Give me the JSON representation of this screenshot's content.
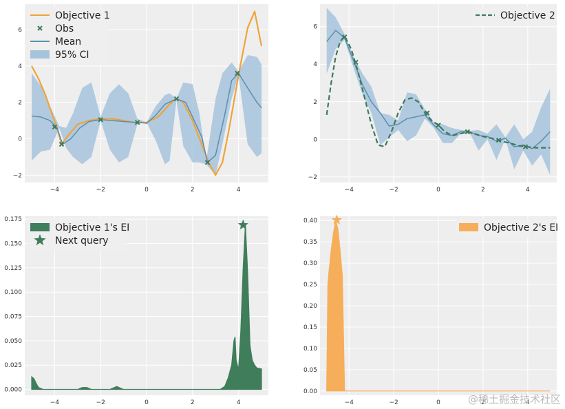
{
  "chart_data": [
    {
      "type": "line",
      "xlim": [
        -5.3,
        5.3
      ],
      "ylim": [
        -2.4,
        7.4
      ],
      "xticks": [
        -4,
        -2,
        0,
        2,
        4
      ],
      "yticks": [
        -2,
        0,
        2,
        4,
        6
      ],
      "grid": true,
      "legend_position": "top-left",
      "series": [
        {
          "name": "95% CI",
          "kind": "band",
          "color": "#a6c3dc",
          "x": [
            -5.0,
            -4.6,
            -4.2,
            -3.8,
            -3.5,
            -3.2,
            -2.8,
            -2.4,
            -2.0,
            -1.6,
            -1.2,
            -0.8,
            -0.4,
            0.0,
            0.4,
            0.8,
            1.0,
            1.3,
            1.6,
            2.0,
            2.3,
            2.6,
            3.0,
            3.3,
            3.7,
            4.0,
            4.4,
            4.8,
            5.0
          ],
          "upper": [
            3.6,
            2.9,
            1.8,
            0.7,
            0.6,
            1.4,
            2.8,
            3.1,
            1.2,
            2.5,
            3.0,
            2.5,
            1.1,
            0.9,
            1.8,
            2.4,
            2.5,
            2.2,
            3.1,
            3.0,
            1.4,
            -1.2,
            2.2,
            3.6,
            4.2,
            3.7,
            4.6,
            4.5,
            4.1
          ],
          "lower": [
            -1.2,
            -0.7,
            -0.6,
            0.6,
            -0.5,
            -1.0,
            -1.4,
            -1.0,
            1.0,
            -0.6,
            -1.3,
            -1.0,
            0.8,
            0.9,
            -0.1,
            -1.4,
            -1.2,
            2.1,
            -0.4,
            -1.3,
            -1.3,
            -1.4,
            -2.0,
            -0.3,
            2.2,
            3.5,
            -0.3,
            -1.0,
            -0.8
          ]
        },
        {
          "name": "Objective 1",
          "kind": "line",
          "color": "#f0a33a",
          "width": 2.2,
          "x": [
            -5.0,
            -4.7,
            -4.4,
            -4.1,
            -3.9,
            -3.7,
            -3.4,
            -3.0,
            -2.5,
            -2.0,
            -1.5,
            -1.0,
            -0.5,
            0.0,
            0.5,
            1.0,
            1.3,
            1.6,
            2.0,
            2.4,
            2.7,
            3.0,
            3.3,
            3.6,
            4.0,
            4.4,
            4.7,
            5.0
          ],
          "y": [
            4.0,
            3.3,
            2.4,
            1.3,
            0.6,
            -0.3,
            0.2,
            0.8,
            1.0,
            1.1,
            1.1,
            1.0,
            0.9,
            0.9,
            1.2,
            1.9,
            2.2,
            2.0,
            1.0,
            -0.3,
            -1.3,
            -2.0,
            -1.3,
            0.6,
            3.5,
            6.1,
            7.0,
            5.1
          ]
        },
        {
          "name": "Mean",
          "kind": "line",
          "color": "#5a8fad",
          "width": 1.5,
          "x": [
            -5.0,
            -4.6,
            -4.2,
            -3.9,
            -3.65,
            -3.3,
            -2.9,
            -2.5,
            -2.0,
            -1.5,
            -1.0,
            -0.5,
            -0.3,
            0.0,
            0.4,
            0.8,
            1.3,
            1.7,
            2.0,
            2.4,
            2.65,
            3.0,
            3.4,
            3.7,
            4.0,
            4.4,
            4.8,
            5.0
          ],
          "y": [
            1.25,
            1.2,
            1.0,
            0.6,
            -0.3,
            0.0,
            0.6,
            0.95,
            1.05,
            1.0,
            0.95,
            0.9,
            0.9,
            0.85,
            1.3,
            1.9,
            2.2,
            2.0,
            1.2,
            0.1,
            -1.3,
            -0.9,
            1.3,
            3.2,
            3.6,
            2.8,
            2.0,
            1.7
          ]
        },
        {
          "name": "Obs",
          "kind": "markers",
          "marker": "x",
          "color": "#3d7a5a",
          "x": [
            -4.0,
            -3.7,
            -2.0,
            -0.4,
            1.3,
            2.65,
            3.95
          ],
          "y": [
            0.65,
            -0.3,
            1.05,
            0.9,
            2.2,
            -1.3,
            3.6
          ]
        }
      ],
      "legend": [
        "Objective 1",
        "Obs",
        "Mean",
        "95% CI"
      ]
    },
    {
      "type": "line",
      "xlim": [
        -5.3,
        5.3
      ],
      "ylim": [
        -2.3,
        7.2
      ],
      "xticks": [
        -4,
        -2,
        0,
        2,
        4
      ],
      "yticks": [
        -2,
        0,
        2,
        4,
        6
      ],
      "grid": true,
      "legend_position": "top-right",
      "series": [
        {
          "name": "95% CI band",
          "kind": "band",
          "color": "#a6c3dc",
          "x": [
            -5.0,
            -4.6,
            -4.2,
            -3.8,
            -3.4,
            -3.0,
            -2.6,
            -2.2,
            -1.8,
            -1.4,
            -1.0,
            -0.6,
            -0.2,
            0.2,
            0.6,
            1.0,
            1.4,
            1.8,
            2.2,
            2.6,
            3.0,
            3.4,
            3.8,
            4.2,
            4.6,
            5.0
          ],
          "upper": [
            7.0,
            6.5,
            5.6,
            4.4,
            3.5,
            2.8,
            1.4,
            1.3,
            1.0,
            2.5,
            2.4,
            1.6,
            0.9,
            0.8,
            0.6,
            0.5,
            0.45,
            0.5,
            0.3,
            0.8,
            0.1,
            0.8,
            0.0,
            0.4,
            1.7,
            2.7
          ],
          "lower": [
            3.5,
            4.8,
            5.3,
            3.8,
            2.4,
            1.4,
            -0.3,
            0.1,
            0.5,
            -0.1,
            0.2,
            1.1,
            0.6,
            -0.2,
            -0.2,
            0.3,
            0.35,
            -0.6,
            0.0,
            -1.1,
            0.0,
            -1.6,
            -0.6,
            -1.4,
            -0.8,
            -1.9
          ]
        },
        {
          "name": "Mean",
          "kind": "line",
          "color": "#5a8fad",
          "width": 1.5,
          "x": [
            -5.0,
            -4.6,
            -4.2,
            -3.8,
            -3.4,
            -3.0,
            -2.6,
            -2.2,
            -1.8,
            -1.4,
            -1.0,
            -0.6,
            -0.2,
            0.2,
            0.6,
            1.0,
            1.4,
            1.8,
            2.2,
            2.6,
            3.0,
            3.4,
            3.8,
            4.2,
            4.6,
            5.0
          ],
          "y": [
            5.2,
            5.8,
            5.4,
            4.2,
            2.9,
            2.0,
            1.4,
            0.7,
            0.8,
            1.1,
            1.2,
            1.3,
            0.75,
            0.3,
            0.2,
            0.4,
            0.4,
            0.2,
            0.15,
            -0.1,
            0.05,
            -0.4,
            -0.3,
            -0.5,
            -0.1,
            0.4
          ]
        },
        {
          "name": "Objective 2",
          "kind": "dashed",
          "color": "#3d7a5a",
          "width": 2.2,
          "x": [
            -5.0,
            -4.8,
            -4.6,
            -4.4,
            -4.2,
            -3.9,
            -3.6,
            -3.3,
            -3.0,
            -2.7,
            -2.4,
            -2.1,
            -1.8,
            -1.5,
            -1.2,
            -0.9,
            -0.6,
            -0.3,
            0.0,
            0.3,
            0.6,
            1.0,
            1.3,
            1.6,
            2.0,
            2.4,
            2.8,
            3.2,
            3.6,
            4.0,
            4.4,
            4.8,
            5.0
          ],
          "y": [
            1.3,
            3.0,
            4.4,
            5.2,
            5.5,
            4.8,
            3.6,
            2.2,
            0.8,
            -0.3,
            -0.4,
            0.4,
            1.4,
            2.1,
            2.2,
            2.0,
            1.4,
            1.0,
            0.75,
            0.4,
            0.2,
            0.3,
            0.4,
            0.3,
            0.15,
            0.05,
            -0.1,
            -0.2,
            -0.35,
            -0.4,
            -0.45,
            -0.45,
            -0.45
          ]
        },
        {
          "name": "Obs",
          "kind": "markers",
          "marker": "x",
          "color": "#3d7a5a",
          "x": [
            -4.2,
            -3.7,
            -0.5,
            0.0,
            1.3,
            2.7,
            3.9
          ],
          "y": [
            5.45,
            4.1,
            1.4,
            0.75,
            0.4,
            -0.05,
            -0.4
          ]
        }
      ],
      "legend": [
        "Objective 2"
      ]
    },
    {
      "type": "area",
      "xlim": [
        -5.3,
        5.3
      ],
      "ylim": [
        -0.006,
        0.178
      ],
      "xticks": [
        -4,
        -2,
        0,
        2,
        4
      ],
      "yticks": [
        0.0,
        0.025,
        0.05,
        0.075,
        0.1,
        0.125,
        0.15,
        0.175
      ],
      "ytick_labels": [
        "0.000",
        "0.025",
        "0.050",
        "0.075",
        "0.100",
        "0.125",
        "0.150",
        "0.175"
      ],
      "grid": true,
      "legend_position": "top-left",
      "series": [
        {
          "name": "Objective 1's EI",
          "kind": "area",
          "color": "#3f7d5b",
          "x": [
            -5.0,
            -4.9,
            -4.8,
            -4.7,
            -4.5,
            -4.3,
            -4.0,
            -3.0,
            -2.8,
            -2.6,
            -2.4,
            -1.6,
            -1.3,
            -1.0,
            -0.7,
            0.0,
            3.2,
            3.4,
            3.55,
            3.7,
            3.8,
            3.85,
            3.9,
            4.0,
            4.1,
            4.2,
            4.3,
            4.4,
            4.5,
            4.6,
            4.7,
            4.8,
            5.0
          ],
          "y": [
            0.013,
            0.011,
            0.006,
            0.002,
            0.0,
            0.0,
            0.0,
            0.0,
            0.002,
            0.002,
            0.0,
            0.0,
            0.003,
            0.0,
            0.0,
            0.0,
            0.0,
            0.003,
            0.012,
            0.025,
            0.05,
            0.054,
            0.03,
            0.02,
            0.06,
            0.125,
            0.17,
            0.12,
            0.045,
            0.03,
            0.025,
            0.022,
            0.021
          ]
        },
        {
          "name": "Next query",
          "kind": "star",
          "color": "#3f7d5b",
          "x": [
            4.2
          ],
          "y": [
            0.169
          ]
        }
      ],
      "legend": [
        "Objective 1's EI",
        "Next query"
      ]
    },
    {
      "type": "area",
      "xlim": [
        -5.3,
        5.3
      ],
      "ylim": [
        -0.01,
        0.41
      ],
      "xticks": [
        -4,
        -2,
        0,
        2,
        4
      ],
      "yticks": [
        0.0,
        0.05,
        0.1,
        0.15,
        0.2,
        0.25,
        0.3,
        0.35,
        0.4
      ],
      "ytick_labels": [
        "0.00",
        "0.05",
        "0.10",
        "0.15",
        "0.20",
        "0.25",
        "0.30",
        "0.35",
        "0.40"
      ],
      "grid": true,
      "legend_position": "top-right",
      "series": [
        {
          "name": "Objective 2's EI",
          "kind": "area",
          "color": "#f6ae5b",
          "x": [
            -5.0,
            -4.95,
            -4.9,
            -4.8,
            -4.7,
            -4.6,
            -4.5,
            -4.4,
            -4.3,
            -4.2,
            -4.1,
            -4.0,
            -3.0,
            0.0,
            2.0,
            5.0
          ],
          "y": [
            0.0,
            0.25,
            0.28,
            0.33,
            0.37,
            0.4,
            0.38,
            0.33,
            0.27,
            0.0,
            0.0,
            0.0,
            0.0,
            0.0,
            0.0,
            0.0
          ]
        },
        {
          "name": "Next query",
          "kind": "star",
          "color": "#f6ae5b",
          "x": [
            -4.55
          ],
          "y": [
            0.401
          ]
        }
      ],
      "legend": [
        "Objective 2's EI"
      ]
    }
  ],
  "watermark": "@稀土掘金技术社区"
}
